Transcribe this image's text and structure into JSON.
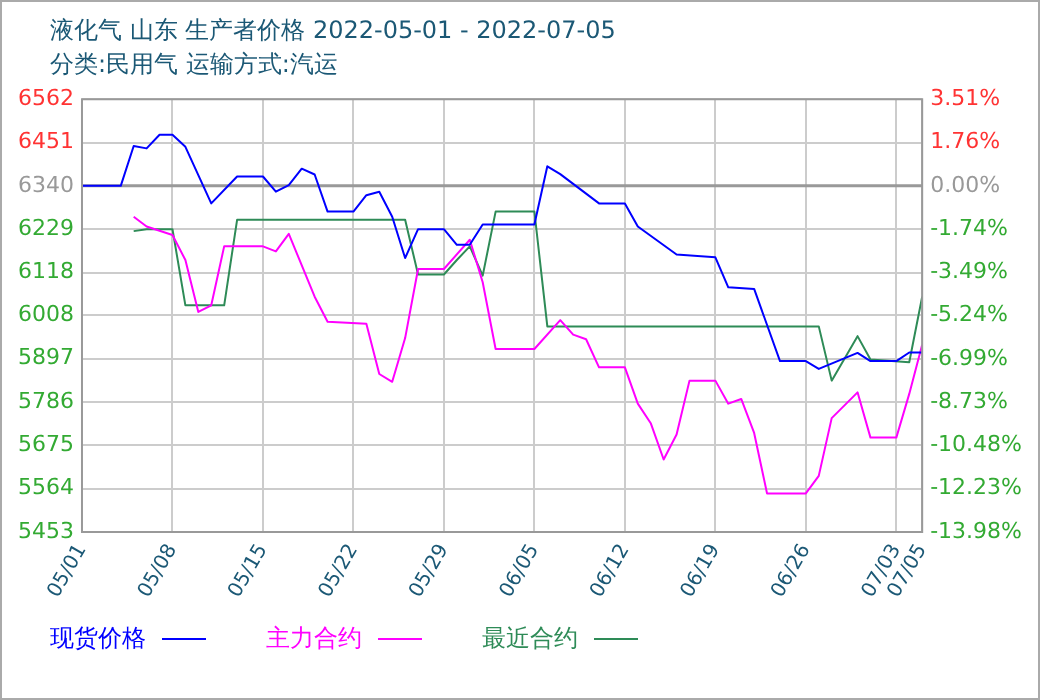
{
  "chart_data": {
    "type": "line",
    "title": "液化气 山东 生产者价格 2022-05-01 - 2022-07-05",
    "subtitle": "分类:民用气 运输方式:汽运",
    "xlim": [
      "2022-05-01",
      "2022-07-05"
    ],
    "xticks": [
      {
        "value": "2022-05-01",
        "label": "05/01"
      },
      {
        "value": "2022-05-08",
        "label": "05/08"
      },
      {
        "value": "2022-05-15",
        "label": "05/15"
      },
      {
        "value": "2022-05-22",
        "label": "05/22"
      },
      {
        "value": "2022-05-29",
        "label": "05/29"
      },
      {
        "value": "2022-06-05",
        "label": "06/05"
      },
      {
        "value": "2022-06-12",
        "label": "06/12"
      },
      {
        "value": "2022-06-19",
        "label": "06/19"
      },
      {
        "value": "2022-06-26",
        "label": "06/26"
      },
      {
        "value": "2022-07-03",
        "label": "07/03"
      },
      {
        "value": "2022-07-05",
        "label": "07/05"
      }
    ],
    "ylim": [
      5453,
      6562
    ],
    "yticks": [
      5453,
      5564,
      5675,
      5786,
      5897,
      6008,
      6118,
      6229,
      6340,
      6451,
      6562
    ],
    "y2lim": [
      -13.98,
      3.51
    ],
    "y2ticks": [
      {
        "value": -13.98,
        "label": "-13.98%"
      },
      {
        "value": -12.23,
        "label": "-12.23%"
      },
      {
        "value": -10.48,
        "label": "-10.48%"
      },
      {
        "value": -8.73,
        "label": "-8.73%"
      },
      {
        "value": -6.99,
        "label": "-6.99%"
      },
      {
        "value": -5.24,
        "label": "-5.24%"
      },
      {
        "value": -3.49,
        "label": "-3.49%"
      },
      {
        "value": -1.74,
        "label": "-1.74%"
      },
      {
        "value": 0,
        "label": "0.00%"
      },
      {
        "value": 1.76,
        "label": "1.76%"
      },
      {
        "value": 3.51,
        "label": "3.51%"
      }
    ],
    "ref_lines": [
      {
        "axis": "y",
        "value": 6340,
        "color": "#999999"
      }
    ],
    "grid": true,
    "legend": "bottom",
    "marker": "none",
    "line_style": "solid",
    "series": [
      {
        "name": "现货价格",
        "color": "#0000ff",
        "x": [
          "2022-05-01",
          "2022-05-04",
          "2022-05-05",
          "2022-05-06",
          "2022-05-07",
          "2022-05-08",
          "2022-05-09",
          "2022-05-11",
          "2022-05-13",
          "2022-05-15",
          "2022-05-16",
          "2022-05-17",
          "2022-05-18",
          "2022-05-19",
          "2022-05-20",
          "2022-05-22",
          "2022-05-23",
          "2022-05-24",
          "2022-05-25",
          "2022-05-26",
          "2022-05-27",
          "2022-05-29",
          "2022-05-30",
          "2022-05-31",
          "2022-06-01",
          "2022-06-05",
          "2022-06-06",
          "2022-06-07",
          "2022-06-10",
          "2022-06-12",
          "2022-06-13",
          "2022-06-16",
          "2022-06-19",
          "2022-06-20",
          "2022-06-22",
          "2022-06-24",
          "2022-06-26",
          "2022-06-27",
          "2022-06-30",
          "2022-07-01",
          "2022-07-03",
          "2022-07-04",
          "2022-07-05"
        ],
        "values": [
          6340,
          6340,
          6442,
          6436,
          6471,
          6471,
          6440,
          6295,
          6364,
          6364,
          6325,
          6342,
          6384,
          6369,
          6274,
          6274,
          6316,
          6325,
          6261,
          6155,
          6229,
          6229,
          6189,
          6189,
          6241,
          6241,
          6390,
          6370,
          6295,
          6295,
          6236,
          6164,
          6157,
          6080,
          6076,
          5891,
          5891,
          5871,
          5912,
          5891,
          5891,
          5913,
          5913
        ]
      },
      {
        "name": "主力合约",
        "color": "#ff00ff",
        "x": [
          "2022-05-05",
          "2022-05-06",
          "2022-05-08",
          "2022-05-09",
          "2022-05-10",
          "2022-05-11",
          "2022-05-12",
          "2022-05-15",
          "2022-05-16",
          "2022-05-17",
          "2022-05-19",
          "2022-05-20",
          "2022-05-23",
          "2022-05-24",
          "2022-05-25",
          "2022-05-26",
          "2022-05-27",
          "2022-05-29",
          "2022-05-31",
          "2022-06-01",
          "2022-06-02",
          "2022-06-05",
          "2022-06-07",
          "2022-06-08",
          "2022-06-09",
          "2022-06-10",
          "2022-06-12",
          "2022-06-13",
          "2022-06-14",
          "2022-06-15",
          "2022-06-16",
          "2022-06-17",
          "2022-06-19",
          "2022-06-20",
          "2022-06-21",
          "2022-06-22",
          "2022-06-23",
          "2022-06-26",
          "2022-06-27",
          "2022-06-28",
          "2022-06-30",
          "2022-07-01",
          "2022-07-03",
          "2022-07-04",
          "2022-07-05"
        ],
        "values": [
          6261,
          6236,
          6214,
          6150,
          6017,
          6034,
          6185,
          6185,
          6172,
          6217,
          6056,
          5992,
          5987,
          5858,
          5838,
          5950,
          6127,
          6127,
          6202,
          6093,
          5922,
          5922,
          5996,
          5959,
          5947,
          5875,
          5875,
          5782,
          5732,
          5639,
          5703,
          5841,
          5841,
          5782,
          5794,
          5707,
          5552,
          5552,
          5597,
          5745,
          5811,
          5695,
          5695,
          5807,
          5933
        ]
      },
      {
        "name": "最近合约",
        "color": "#2e8b57",
        "x": [
          "2022-05-05",
          "2022-05-06",
          "2022-05-08",
          "2022-05-09",
          "2022-05-12",
          "2022-05-13",
          "2022-05-26",
          "2022-05-27",
          "2022-05-29",
          "2022-05-30",
          "2022-05-31",
          "2022-06-01",
          "2022-06-02",
          "2022-06-05",
          "2022-06-06",
          "2022-06-27",
          "2022-06-28",
          "2022-06-30",
          "2022-07-01",
          "2022-07-04",
          "2022-07-05"
        ],
        "values": [
          6224,
          6229,
          6229,
          6034,
          6034,
          6253,
          6253,
          6113,
          6113,
          6150,
          6185,
          6110,
          6274,
          6274,
          5980,
          5980,
          5841,
          5955,
          5895,
          5888,
          6056
        ]
      }
    ]
  }
}
